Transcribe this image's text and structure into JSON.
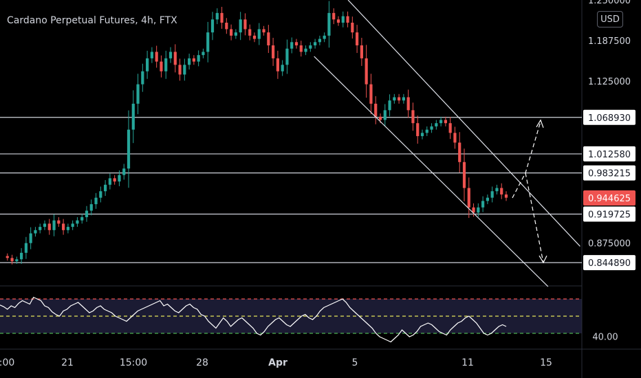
{
  "chart_data": {
    "type": "candlestick",
    "title": "Cardano Perpetual Futures, 4h, FTX",
    "currency": "USD",
    "price_axis": {
      "range": [
        0.81,
        1.25
      ],
      "tick_labels": [
        "1.250000",
        "1.187500",
        "1.125000",
        "0.875000"
      ]
    },
    "time_axis": {
      "tick_labels": [
        ":00",
        "21",
        "15:00",
        "28",
        "Apr",
        "5",
        "11",
        "15"
      ]
    },
    "horizontal_levels": [
      {
        "value": 1.06893,
        "label": "1.068930"
      },
      {
        "value": 1.01258,
        "label": "1.012580"
      },
      {
        "value": 0.983215,
        "label": "0.983215"
      },
      {
        "value": 0.919725,
        "label": "0.919725"
      },
      {
        "value": 0.84489,
        "label": "0.844890"
      }
    ],
    "last_price": {
      "value": 0.944625,
      "label": "0.944625"
    },
    "trend_channel": {
      "upper": [
        [
          0.83,
          1.246
        ],
        [
          0.975,
          0.805
        ]
      ],
      "lower": [
        [
          0.78,
          1.093
        ],
        [
          0.885,
          0.805
        ]
      ]
    },
    "projection": {
      "start": 0.9447,
      "pivot": 0.9832,
      "up_target": 1.0689,
      "down_target": 0.8449
    },
    "candle_path": [
      0.855,
      0.852,
      0.847,
      0.85,
      0.86,
      0.875,
      0.89,
      0.895,
      0.9,
      0.905,
      0.895,
      0.91,
      0.905,
      0.895,
      0.9,
      0.905,
      0.91,
      0.915,
      0.925,
      0.935,
      0.945,
      0.955,
      0.965,
      0.975,
      0.97,
      0.98,
      0.99,
      1.05,
      1.09,
      1.12,
      1.14,
      1.16,
      1.17,
      1.155,
      1.14,
      1.16,
      1.17,
      1.15,
      1.135,
      1.15,
      1.16,
      1.155,
      1.165,
      1.17,
      1.2,
      1.22,
      1.23,
      1.215,
      1.205,
      1.195,
      1.2,
      1.22,
      1.205,
      1.195,
      1.19,
      1.205,
      1.2,
      1.18,
      1.16,
      1.14,
      1.15,
      1.175,
      1.185,
      1.18,
      1.17,
      1.175,
      1.18,
      1.185,
      1.19,
      1.195,
      1.23,
      1.22,
      1.215,
      1.225,
      1.215,
      1.2,
      1.18,
      1.16,
      1.12,
      1.09,
      1.07,
      1.065,
      1.08,
      1.095,
      1.1,
      1.095,
      1.1,
      1.08,
      1.06,
      1.04,
      1.045,
      1.05,
      1.055,
      1.06,
      1.065,
      1.06,
      1.045,
      1.03,
      1.0,
      0.96,
      0.93,
      0.922,
      0.93,
      0.94,
      0.945,
      0.955,
      0.96,
      0.95,
      0.945
    ],
    "rsi": {
      "levels": [
        70,
        50,
        30
      ],
      "tick_labels": [
        "40.00"
      ],
      "values": [
        63,
        61,
        58,
        62,
        60,
        65,
        68,
        66,
        64,
        72,
        70,
        68,
        62,
        60,
        55,
        52,
        50,
        56,
        58,
        62,
        64,
        66,
        62,
        58,
        54,
        56,
        60,
        62,
        58,
        56,
        54,
        50,
        48,
        46,
        44,
        48,
        52,
        56,
        58,
        60,
        62,
        64,
        66,
        68,
        62,
        64,
        60,
        56,
        54,
        58,
        62,
        64,
        60,
        58,
        52,
        50,
        44,
        40,
        36,
        42,
        48,
        44,
        38,
        42,
        46,
        48,
        44,
        40,
        36,
        30,
        28,
        32,
        38,
        42,
        46,
        48,
        44,
        40,
        38,
        42,
        46,
        50,
        52,
        48,
        46,
        50,
        56,
        60,
        62,
        64,
        66,
        68,
        70,
        66,
        60,
        56,
        52,
        48,
        44,
        40,
        36,
        30,
        26,
        24,
        22,
        20,
        24,
        28,
        34,
        30,
        26,
        28,
        32,
        38,
        40,
        42,
        40,
        36,
        32,
        30,
        28,
        34,
        38,
        42,
        44,
        48,
        50,
        46,
        42,
        36,
        30,
        28,
        30,
        34,
        38,
        40,
        38
      ]
    },
    "colors": {
      "up": "#26a69a",
      "down": "#ef5350",
      "level_line": "#d1d4dc",
      "channel_line": "#e0e3eb",
      "rsi_line": "#ffffff",
      "rsi_band": "#1b1b33",
      "rsi_upper": "#ef5350",
      "rsi_mid": "#e6e65a",
      "rsi_lower": "#4caf50",
      "axis_text": "#d1d4dc"
    },
    "grid": false
  }
}
